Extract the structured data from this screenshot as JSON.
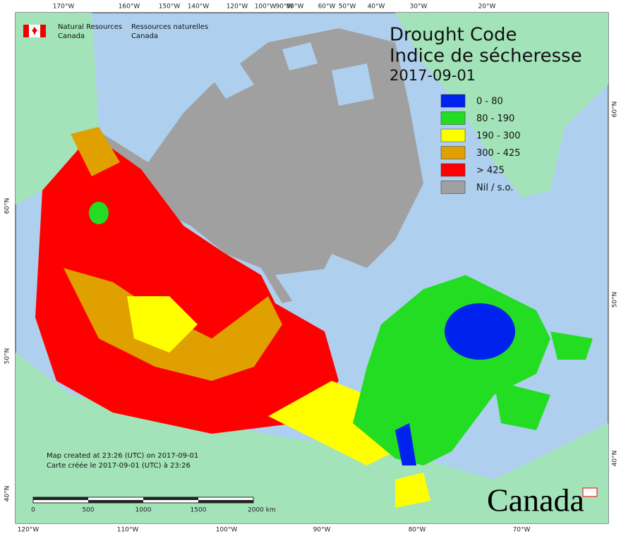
{
  "header": {
    "agency_en": [
      "Natural Resources",
      "Canada"
    ],
    "agency_fr": [
      "Ressources naturelles",
      "Canada"
    ],
    "title": "Drought Code",
    "subtitle": "Indice de sécheresse",
    "date": "2017-09-01"
  },
  "legend": [
    {
      "label": "0 - 80",
      "color": "#0022ee"
    },
    {
      "label": "80 - 190",
      "color": "#22dd22"
    },
    {
      "label": "190 - 300",
      "color": "#ffff00"
    },
    {
      "label": "300 - 425",
      "color": "#e0a000"
    },
    {
      "label": "> 425",
      "color": "#ff0000"
    },
    {
      "label": "Nil / s.o.",
      "color": "#a0a0a0"
    }
  ],
  "graticule": {
    "top": [
      "170°W",
      "160°W",
      "150°W",
      "140°W",
      "120°W",
      "100°W",
      "90°W",
      "80°W",
      "60°W",
      "50°W",
      "40°W",
      "30°W",
      "20°W"
    ],
    "bottom": [
      "120°W",
      "110°W",
      "100°W",
      "90°W",
      "80°W",
      "70°W"
    ],
    "left": [
      "60°N",
      "50°N",
      "40°N"
    ],
    "right": [
      "60°N",
      "50°N",
      "40°N"
    ]
  },
  "notes": [
    "Map created at 23:26 (UTC) on 2017-09-01",
    "Carte créée le 2017-09-01 (UTC) à 23:26"
  ],
  "scale_bar": [
    "0",
    "500",
    "1000",
    "1500",
    "2000 km"
  ],
  "wordmark": "Canada"
}
